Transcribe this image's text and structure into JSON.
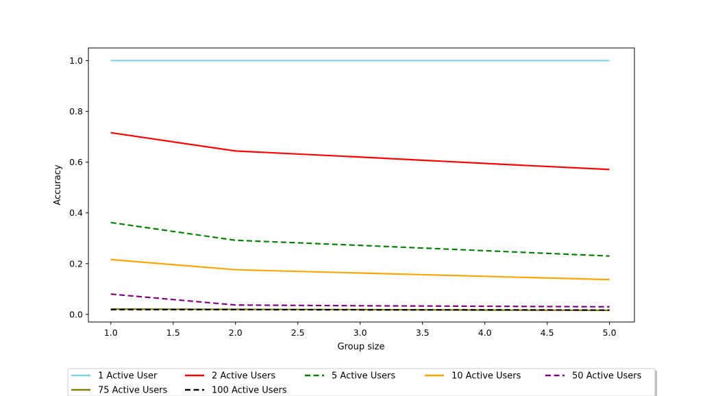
{
  "chart_data": {
    "type": "line",
    "title": "",
    "xlabel": "Group size",
    "ylabel": "Accuracy",
    "xlim": [
      0.82,
      5.2
    ],
    "ylim": [
      -0.03,
      1.05
    ],
    "x_ticks": [
      1.0,
      1.5,
      2.0,
      2.5,
      3.0,
      3.5,
      4.0,
      4.5,
      5.0
    ],
    "x_tick_labels": [
      "1.0",
      "1.5",
      "2.0",
      "2.5",
      "3.0",
      "3.5",
      "4.0",
      "4.5",
      "5.0"
    ],
    "y_ticks": [
      0.0,
      0.2,
      0.4,
      0.6,
      0.8,
      1.0
    ],
    "y_tick_labels": [
      "0.0",
      "0.2",
      "0.4",
      "0.6",
      "0.8",
      "1.0"
    ],
    "x": [
      1,
      2,
      3,
      4,
      5
    ],
    "grid": false,
    "legend_position": "bottom",
    "series": [
      {
        "name": "1 Active User",
        "values": [
          1.0,
          1.0,
          1.0,
          1.0,
          1.0
        ],
        "color": "#87ceeb",
        "dash": "solid"
      },
      {
        "name": "2 Active Users",
        "values": [
          0.716,
          0.644,
          0.62,
          0.595,
          0.571
        ],
        "color": "#ff0000",
        "dash": "solid"
      },
      {
        "name": "5 Active Users",
        "values": [
          0.362,
          0.292,
          0.272,
          0.251,
          0.23
        ],
        "color": "#008000",
        "dash": "dashed"
      },
      {
        "name": "10 Active Users",
        "values": [
          0.216,
          0.176,
          0.163,
          0.15,
          0.137
        ],
        "color": "#ffa500",
        "dash": "solid"
      },
      {
        "name": "50 Active Users",
        "values": [
          0.08,
          0.037,
          0.034,
          0.032,
          0.03
        ],
        "color": "#800080",
        "dash": "dashed"
      },
      {
        "name": "75 Active Users",
        "values": [
          0.021,
          0.02,
          0.019,
          0.017,
          0.016
        ],
        "color": "#808000",
        "dash": "solid"
      },
      {
        "name": "100 Active Users",
        "values": [
          0.019,
          0.019,
          0.018,
          0.018,
          0.017
        ],
        "color": "#000000",
        "dash": "dashed"
      }
    ]
  }
}
